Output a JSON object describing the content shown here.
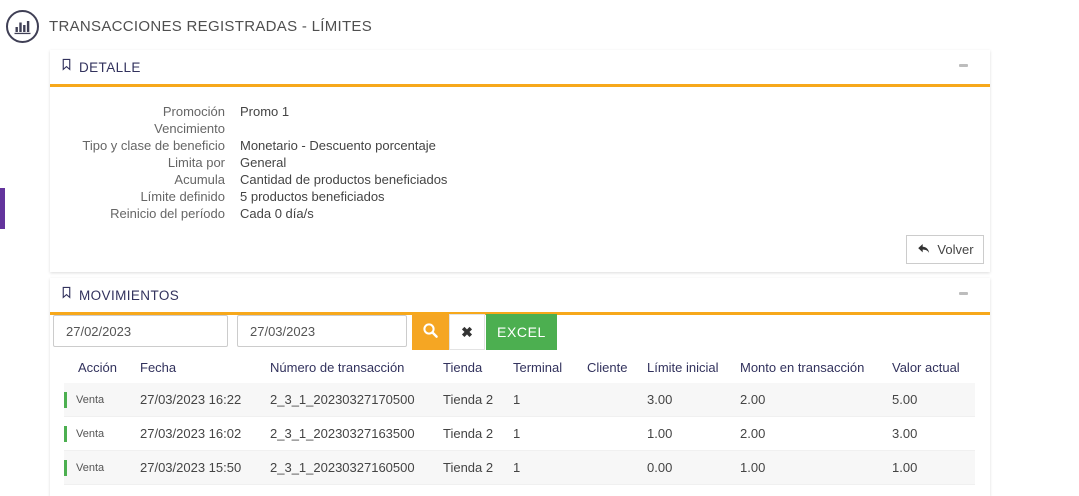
{
  "page": {
    "title": "TRANSACCIONES REGISTRADAS - LÍMITES"
  },
  "detail_panel": {
    "title": "DETALLE",
    "fields": [
      {
        "label": "Promoción",
        "value": "Promo 1"
      },
      {
        "label": "Vencimiento",
        "value": ""
      },
      {
        "label": "Tipo y clase de beneficio",
        "value": "Monetario - Descuento porcentaje"
      },
      {
        "label": "Limita por",
        "value": "General"
      },
      {
        "label": "Acumula",
        "value": "Cantidad de productos beneficiados"
      },
      {
        "label": "Límite definido",
        "value": "5 productos beneficiados"
      },
      {
        "label": "Reinicio del período",
        "value": "Cada 0 día/s"
      }
    ],
    "back_button_label": "Volver"
  },
  "movements_panel": {
    "title": "MOVIMIENTOS",
    "filters": {
      "date_from": "27/02/2023",
      "date_to": "27/03/2023",
      "clear_icon_char": "✖",
      "excel_button_label": "EXCEL"
    },
    "table": {
      "headers": [
        "Acción",
        "Fecha",
        "Número de transacción",
        "Tienda",
        "Terminal",
        "Cliente",
        "Límite inicial",
        "Monto en transacción",
        "Valor actual"
      ],
      "rows": [
        [
          "Venta",
          "27/03/2023 16:22",
          "2_3_1_20230327170500",
          "Tienda 2",
          "1",
          "",
          "3.00",
          "2.00",
          "5.00"
        ],
        [
          "Venta",
          "27/03/2023 16:02",
          "2_3_1_20230327163500",
          "Tienda 2",
          "1",
          "",
          "1.00",
          "2.00",
          "3.00"
        ],
        [
          "Venta",
          "27/03/2023 15:50",
          "2_3_1_20230327160500",
          "Tienda 2",
          "1",
          "",
          "0.00",
          "1.00",
          "1.00"
        ]
      ]
    }
  },
  "colors": {
    "accent_orange": "#f5a623",
    "underline_orange": "#f7a81b",
    "action_green": "#4caf50",
    "nav_purple": "#63349c",
    "panel_title_navy": "#32325d"
  }
}
